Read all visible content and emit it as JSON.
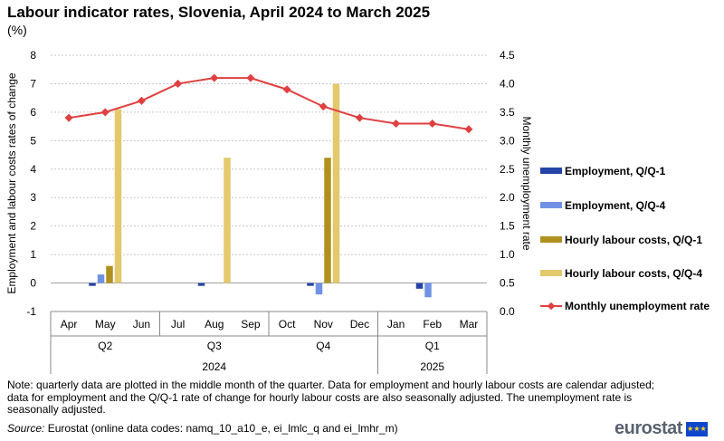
{
  "title": "Labour indicator rates, Slovenia, April 2024 to March 2025",
  "subtitle": "(%)",
  "note": "Note: quarterly data are plotted in the middle month of the quarter. Data for employment and hourly labour costs are calendar adjusted; data for employment and the Q/Q-1 rate of change for hourly labour costs are also seasonally adjusted. The unemployment rate is seasonally adjusted.",
  "source_label": "Source:",
  "source_text": " Eurostat (online data codes: namq_10_a10_e, ei_lmlc_q and ei_lmhr_m)",
  "logo_text": "eurostat",
  "colors": {
    "employment_qq1": "#2644a7",
    "employment_qq4": "#7192e4",
    "hourly_qq1": "#b09120",
    "hourly_qq4": "#e3c96b",
    "unemployment": "#e04040",
    "grid": "#c8c8c8"
  },
  "chart_data": {
    "type": "bar",
    "categories": [
      "Apr",
      "May",
      "Jun",
      "Jul",
      "Aug",
      "Sep",
      "Oct",
      "Nov",
      "Dec",
      "Jan",
      "Feb",
      "Mar"
    ],
    "quarters": [
      "Q2",
      "Q3",
      "Q4",
      "Q1"
    ],
    "years": [
      "2024",
      "2025"
    ],
    "ylabel": "Employment and labour costs rates of change",
    "y2label": "Monthly unemployment rate",
    "ylim": [
      -1,
      8
    ],
    "yticks": [
      "-1",
      "0",
      "1",
      "2",
      "3",
      "4",
      "5",
      "6",
      "7",
      "8"
    ],
    "y2lim": [
      0.0,
      4.5
    ],
    "y2ticks": [
      "0.0",
      "0.5",
      "1.0",
      "1.5",
      "2.0",
      "2.5",
      "3.0",
      "3.5",
      "4.0",
      "4.5"
    ],
    "grid": true,
    "legend_position": "right",
    "series": [
      {
        "name": "Employment, Q/Q-1",
        "type": "bar",
        "values": [
          null,
          -0.1,
          null,
          null,
          -0.1,
          null,
          null,
          -0.1,
          null,
          null,
          -0.2,
          null
        ]
      },
      {
        "name": "Employment, Q/Q-4",
        "type": "bar",
        "values": [
          null,
          0.3,
          null,
          null,
          null,
          null,
          null,
          -0.4,
          null,
          null,
          -0.5,
          null
        ]
      },
      {
        "name": "Hourly labour costs, Q/Q-1",
        "type": "bar",
        "values": [
          null,
          0.6,
          null,
          null,
          null,
          null,
          null,
          4.4,
          null,
          null,
          null,
          null
        ]
      },
      {
        "name": "Hourly labour costs, Q/Q-4",
        "type": "bar",
        "values": [
          null,
          6.1,
          null,
          null,
          4.4,
          null,
          null,
          7.0,
          null,
          null,
          null,
          null
        ]
      },
      {
        "name": "Monthly unemployment rate",
        "type": "line",
        "axis": "right",
        "values": [
          3.4,
          3.5,
          3.7,
          4.0,
          4.1,
          4.1,
          3.9,
          3.6,
          3.4,
          3.3,
          3.3,
          3.2
        ]
      }
    ]
  }
}
